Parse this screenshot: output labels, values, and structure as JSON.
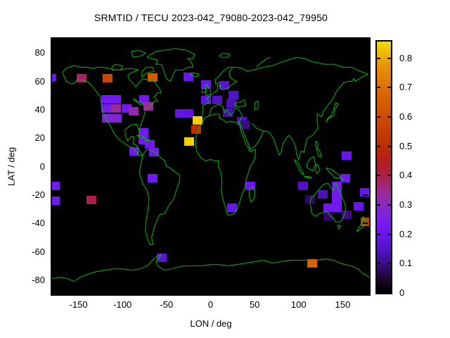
{
  "title": "SRMTID / TECU 2023-042_79080-2023-042_79950",
  "axes": {
    "x_label": "LON / deg",
    "y_label": "LAT / deg",
    "x_ticks": [
      {
        "v": -150,
        "label": "-150"
      },
      {
        "v": -100,
        "label": "-100"
      },
      {
        "v": -50,
        "label": "-50"
      },
      {
        "v": 0,
        "label": "0"
      },
      {
        "v": 50,
        "label": "50"
      },
      {
        "v": 100,
        "label": "100"
      },
      {
        "v": 150,
        "label": "150"
      }
    ],
    "y_ticks": [
      {
        "v": 80,
        "label": "80"
      },
      {
        "v": 60,
        "label": "60"
      },
      {
        "v": 40,
        "label": "40"
      },
      {
        "v": 20,
        "label": "20"
      },
      {
        "v": 0,
        "label": "0"
      },
      {
        "v": -20,
        "label": "-20"
      },
      {
        "v": -40,
        "label": "-40"
      },
      {
        "v": -60,
        "label": "-60"
      },
      {
        "v": -80,
        "label": "-80"
      }
    ]
  },
  "colorbar": {
    "min": 0,
    "max": 0.862,
    "ticks": [
      {
        "v": 0.0,
        "label": "0"
      },
      {
        "v": 0.1,
        "label": "0.1"
      },
      {
        "v": 0.2,
        "label": "0.2"
      },
      {
        "v": 0.3,
        "label": "0.3"
      },
      {
        "v": 0.4,
        "label": "0.4"
      },
      {
        "v": 0.5,
        "label": "0.5"
      },
      {
        "v": 0.6,
        "label": "0.6"
      },
      {
        "v": 0.7,
        "label": "0.7"
      },
      {
        "v": 0.8,
        "label": "0.8"
      }
    ],
    "palette": [
      [
        0.0,
        "#000000"
      ],
      [
        0.05,
        "#1D0630"
      ],
      [
        0.1,
        "#3A0D85"
      ],
      [
        0.15,
        "#5312C5"
      ],
      [
        0.2,
        "#6A15F0"
      ],
      [
        0.25,
        "#7B1EEC"
      ],
      [
        0.3,
        "#8C28C4"
      ],
      [
        0.35,
        "#9D2A92"
      ],
      [
        0.4,
        "#AC2048"
      ],
      [
        0.45,
        "#B41C20"
      ],
      [
        0.5,
        "#BC2D00"
      ],
      [
        0.55,
        "#C43C00"
      ],
      [
        0.6,
        "#CC4B00"
      ],
      [
        0.65,
        "#D45C00"
      ],
      [
        0.7,
        "#DC6E00"
      ],
      [
        0.75,
        "#E48500"
      ],
      [
        0.8,
        "#ECA300"
      ],
      [
        0.862,
        "#F2DC00"
      ]
    ]
  },
  "map": {
    "background": "#000000",
    "coast_color": "#00BB00"
  },
  "chart_data": {
    "type": "heatmap",
    "title": "SRMTID / TECU 2023-042_79080-2023-042_79950",
    "xlabel": "LON / deg",
    "ylabel": "LAT / deg",
    "xlim": [
      -180,
      180
    ],
    "ylim": [
      -90,
      90
    ],
    "grid": false,
    "legend_position": "right-colorbar",
    "colorbar_range": [
      0,
      0.862
    ],
    "units": "TECU",
    "cell_size_deg": {
      "lon": 11,
      "lat": 6
    },
    "basemap": "world coastlines, equirectangular, green on black",
    "points": [
      {
        "lon": -180.5,
        "lat": 62.3,
        "value": 0.2
      },
      {
        "lon": -146.3,
        "lat": 62.4,
        "value": 0.38
      },
      {
        "lon": -116.6,
        "lat": 62.4,
        "value": 0.58
      },
      {
        "lon": -66.2,
        "lat": 62.7,
        "value": 0.64
      },
      {
        "lon": -25.4,
        "lat": 63.2,
        "value": 0.2
      },
      {
        "lon": -118.6,
        "lat": 47.6,
        "value": 0.22
      },
      {
        "lon": -107.3,
        "lat": 47.6,
        "value": 0.22
      },
      {
        "lon": -75.8,
        "lat": 47.5,
        "value": 0.22
      },
      {
        "lon": -118.6,
        "lat": 40.9,
        "value": 0.24
      },
      {
        "lon": -107.3,
        "lat": 40.9,
        "value": 0.34
      },
      {
        "lon": -95.2,
        "lat": 40.9,
        "value": 0.22
      },
      {
        "lon": -87.6,
        "lat": 39.0,
        "value": 0.32
      },
      {
        "lon": -70.6,
        "lat": 42.4,
        "value": 0.34
      },
      {
        "lon": -117.6,
        "lat": 33.9,
        "value": 0.27
      },
      {
        "lon": -106.4,
        "lat": 33.9,
        "value": 0.27
      },
      {
        "lon": -76.3,
        "lat": 24.2,
        "value": 0.22
      },
      {
        "lon": -76.3,
        "lat": 18.8,
        "value": 0.22
      },
      {
        "lon": -86.6,
        "lat": 10.8,
        "value": 0.22
      },
      {
        "lon": -69.4,
        "lat": 15.8,
        "value": 0.22
      },
      {
        "lon": -64.3,
        "lat": 10.2,
        "value": 0.22
      },
      {
        "lon": -35.0,
        "lat": 37.6,
        "value": 0.18
      },
      {
        "lon": -25.2,
        "lat": 37.6,
        "value": 0.18
      },
      {
        "lon": -14.8,
        "lat": 32.3,
        "value": 0.85
      },
      {
        "lon": -16.0,
        "lat": 26.1,
        "value": 0.5
      },
      {
        "lon": -24.3,
        "lat": 17.6,
        "value": 0.85
      },
      {
        "lon": -5.3,
        "lat": 57.9,
        "value": 0.2
      },
      {
        "lon": 15.3,
        "lat": 57.5,
        "value": 0.17
      },
      {
        "lon": 26.0,
        "lat": 50.1,
        "value": 0.15
      },
      {
        "lon": -5.0,
        "lat": 47.1,
        "value": 0.18
      },
      {
        "lon": 7.2,
        "lat": 46.9,
        "value": 0.15
      },
      {
        "lon": 23.3,
        "lat": 44.4,
        "value": 0.14
      },
      {
        "lon": 19.4,
        "lat": 38.1,
        "value": 0.13
      },
      {
        "lon": 35.2,
        "lat": 31.9,
        "value": 0.14
      },
      {
        "lon": 38.8,
        "lat": 29.6,
        "value": 0.1
      },
      {
        "lon": 45.0,
        "lat": -13.8,
        "value": 0.2
      },
      {
        "lon": 24.0,
        "lat": -28.9,
        "value": 0.2
      },
      {
        "lon": -65.6,
        "lat": -8.4,
        "value": 0.22
      },
      {
        "lon": -176.5,
        "lat": -13.7,
        "value": 0.22
      },
      {
        "lon": -176.5,
        "lat": -24.0,
        "value": 0.22
      },
      {
        "lon": -135.2,
        "lat": -23.6,
        "value": 0.4
      },
      {
        "lon": -55.2,
        "lat": -64.0,
        "value": 0.17
      },
      {
        "lon": 104.9,
        "lat": -13.5,
        "value": 0.15
      },
      {
        "lon": 127.2,
        "lat": -19.6,
        "value": 0.14
      },
      {
        "lon": 113.2,
        "lat": -23.2,
        "value": 0.08
      },
      {
        "lon": 142.9,
        "lat": -13.6,
        "value": 0.22
      },
      {
        "lon": 142.9,
        "lat": -19.6,
        "value": 0.22
      },
      {
        "lon": 142.9,
        "lat": -25.6,
        "value": 0.22
      },
      {
        "lon": 153.2,
        "lat": -8.1,
        "value": 0.22
      },
      {
        "lon": 154.8,
        "lat": 7.5,
        "value": 0.2
      },
      {
        "lon": 175.4,
        "lat": -18.2,
        "value": 0.2
      },
      {
        "lon": 167.8,
        "lat": -28.1,
        "value": 0.2
      },
      {
        "lon": 133.6,
        "lat": -29.0,
        "value": 0.22
      },
      {
        "lon": 142.9,
        "lat": -29.0,
        "value": 0.22
      },
      {
        "lon": 133.8,
        "lat": -35.0,
        "value": 0.08
      },
      {
        "lon": 154.5,
        "lat": -33.9,
        "value": 0.1
      },
      {
        "lon": 176.4,
        "lat": -38.9,
        "value": 0.55
      },
      {
        "lon": 115.2,
        "lat": -68.3,
        "value": 0.67
      }
    ]
  }
}
